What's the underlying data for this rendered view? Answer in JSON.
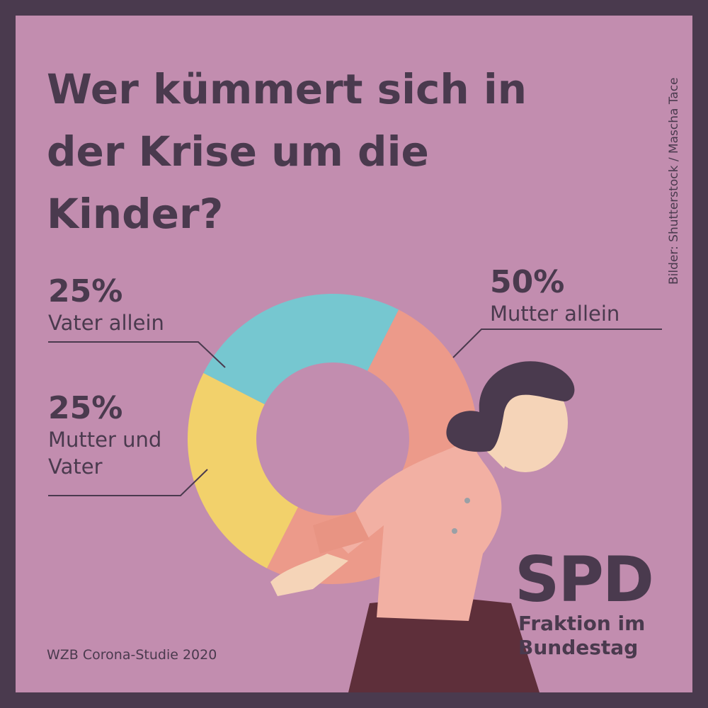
{
  "chart_data": {
    "type": "donut",
    "title": "Wer kümmert sich in der Krise um die Kinder?",
    "categories": [
      "Mutter allein",
      "Mutter und Vater",
      "Vater allein"
    ],
    "values": [
      50,
      25,
      25
    ],
    "value_labels": [
      "50%",
      "25%",
      "25%"
    ],
    "colors": [
      "#ec9a8a",
      "#f2d16b",
      "#76c7d0"
    ],
    "source": "WZB Corona-Studie 2020",
    "credit": "Bilder: Shutterstock / Mascha Tace"
  },
  "logo": {
    "name": "SPD",
    "subtitle": "Fraktion im Bundestag"
  }
}
